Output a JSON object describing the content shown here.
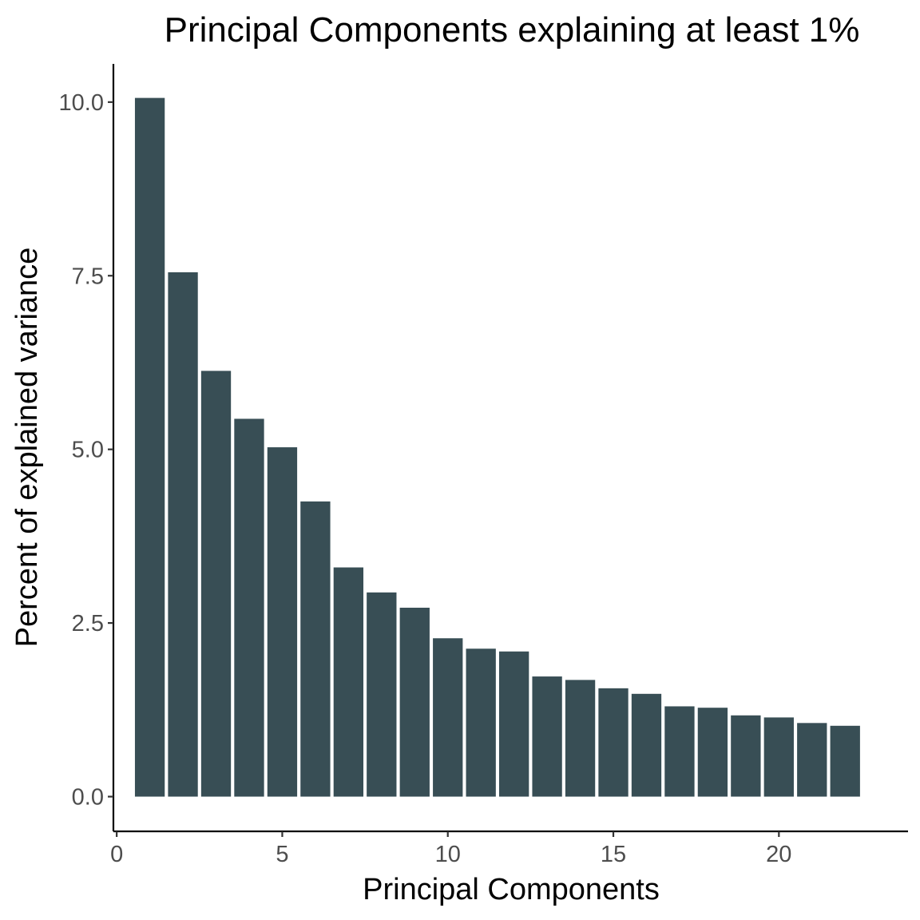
{
  "chart_data": {
    "type": "bar",
    "title": "Principal Components explaining at least 1%",
    "xlabel": "Principal Components",
    "ylabel": "Percent of explained variance",
    "x": [
      1,
      2,
      3,
      4,
      5,
      6,
      7,
      8,
      9,
      10,
      11,
      12,
      13,
      14,
      15,
      16,
      17,
      18,
      19,
      20,
      21,
      22
    ],
    "values": [
      10.06,
      7.55,
      6.13,
      5.44,
      5.03,
      4.25,
      3.3,
      2.94,
      2.72,
      2.28,
      2.13,
      2.09,
      1.73,
      1.68,
      1.56,
      1.48,
      1.3,
      1.28,
      1.17,
      1.14,
      1.06,
      1.02
    ],
    "xlim": [
      -0.1,
      23.9
    ],
    "ylim": [
      -0.5,
      10.55
    ],
    "xticks": [
      0,
      5,
      10,
      15,
      20
    ],
    "xtick_labels": [
      "0",
      "5",
      "10",
      "15",
      "20"
    ],
    "yticks": [
      0,
      2.5,
      5,
      7.5,
      10
    ],
    "ytick_labels": [
      "0.0",
      "2.5",
      "5.0",
      "7.5",
      "10.0"
    ],
    "bar_color": "#384e55",
    "grid": false,
    "legend": "none"
  }
}
